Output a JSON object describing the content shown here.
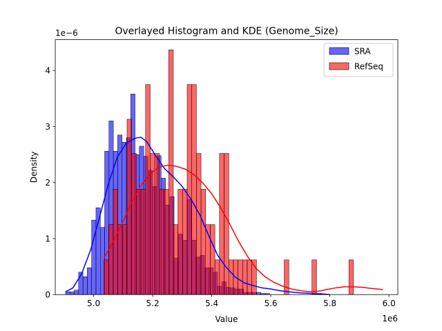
{
  "chart_data": {
    "type": "bar",
    "title": "Overlayed Histogram and KDE (Genome_Size)",
    "xlabel": "Value",
    "ylabel": "Density",
    "x_offset_text": "1e6",
    "y_offset_text": "1e−6",
    "xlim": [
      4.87,
      6.03
    ],
    "ylim": [
      0,
      4.55
    ],
    "xticks": [
      {
        "value": 5.0,
        "label": "5.0"
      },
      {
        "value": 5.2,
        "label": "5.2"
      },
      {
        "value": 5.4,
        "label": "5.4"
      },
      {
        "value": 5.6,
        "label": "5.6"
      },
      {
        "value": 5.8,
        "label": "5.8"
      },
      {
        "value": 6.0,
        "label": "6.0"
      }
    ],
    "yticks": [
      {
        "value": 0,
        "label": "0"
      },
      {
        "value": 1,
        "label": "1"
      },
      {
        "value": 2,
        "label": "2"
      },
      {
        "value": 3,
        "label": "3"
      },
      {
        "value": 4,
        "label": "4"
      }
    ],
    "grid": false,
    "legend_position": "top-right",
    "series": [
      {
        "name": "SRA",
        "kind": "histogram",
        "color": "#0000ff",
        "opacity": 0.6,
        "bin_start": 4.905,
        "bin_width": 0.0147,
        "values": [
          0.05,
          0.05,
          0.08,
          0.4,
          0.32,
          0.48,
          1.33,
          1.55,
          1.2,
          2.56,
          3.1,
          2.56,
          2.85,
          2.72,
          2.8,
          3.58,
          2.5,
          2.65,
          2.47,
          2.22,
          1.93,
          2.48,
          2.08,
          1.6,
          1.75,
          0.65,
          1.08,
          0.97,
          1.7,
          0.97,
          0.67,
          0.7,
          0.48,
          0.48,
          0.4,
          0.15,
          0.23,
          0.13,
          0.12,
          0.1,
          0.1,
          0.04,
          0.04,
          0.04,
          0.04,
          0.02,
          0.02,
          0.0,
          0.0,
          0.0,
          0.0,
          0.0,
          0.0,
          0.0,
          0.0,
          0.0,
          0.0,
          0.0,
          0.02
        ]
      },
      {
        "name": "RefSeq",
        "kind": "histogram",
        "color": "#ff0000",
        "opacity": 0.6,
        "bin_start": 5.035,
        "bin_width": 0.01565,
        "values": [
          0.62,
          1.25,
          1.88,
          1.25,
          1.25,
          3.13,
          2.52,
          1.88,
          1.88,
          3.75,
          2.52,
          2.52,
          1.88,
          1.88,
          4.37,
          1.25,
          1.88,
          1.88,
          3.75,
          3.75,
          2.52,
          1.88,
          1.25,
          1.25,
          0.62,
          2.52,
          2.52,
          0.62,
          0.62,
          0.62,
          0.62,
          0.62,
          0.62,
          0,
          0,
          0,
          0,
          0,
          0,
          0.62,
          0,
          0,
          0,
          0,
          0,
          0.62,
          0,
          0,
          0,
          0,
          0,
          0,
          0,
          0.62
        ]
      }
    ],
    "kde": [
      {
        "name": "SRA",
        "color": "#0000ff",
        "x": [
          4.905,
          4.93,
          4.96,
          4.99,
          5.02,
          5.05,
          5.08,
          5.11,
          5.14,
          5.16,
          5.18,
          5.21,
          5.24,
          5.27,
          5.3,
          5.33,
          5.36,
          5.39,
          5.42,
          5.45,
          5.48,
          5.51,
          5.54,
          5.57,
          5.6,
          5.63,
          5.66,
          5.7,
          5.74,
          5.78,
          5.8
        ],
        "y": [
          0.05,
          0.12,
          0.38,
          0.8,
          1.38,
          1.98,
          2.45,
          2.7,
          2.79,
          2.81,
          2.73,
          2.48,
          2.25,
          2.1,
          1.93,
          1.7,
          1.42,
          1.05,
          0.7,
          0.48,
          0.31,
          0.21,
          0.16,
          0.12,
          0.1,
          0.07,
          0.05,
          0.03,
          0.02,
          0.01,
          0.0
        ]
      },
      {
        "name": "RefSeq",
        "color": "#ff0000",
        "x": [
          5.035,
          5.07,
          5.1,
          5.13,
          5.16,
          5.19,
          5.22,
          5.25,
          5.28,
          5.31,
          5.34,
          5.37,
          5.4,
          5.43,
          5.46,
          5.49,
          5.52,
          5.55,
          5.58,
          5.61,
          5.64,
          5.67,
          5.7,
          5.73,
          5.76,
          5.79,
          5.82,
          5.85,
          5.88,
          5.91,
          5.94,
          5.98
        ],
        "y": [
          0.65,
          0.98,
          1.31,
          1.66,
          1.95,
          2.15,
          2.27,
          2.31,
          2.29,
          2.24,
          2.14,
          1.99,
          1.8,
          1.55,
          1.27,
          0.96,
          0.69,
          0.47,
          0.32,
          0.22,
          0.15,
          0.1,
          0.07,
          0.05,
          0.06,
          0.09,
          0.12,
          0.14,
          0.14,
          0.13,
          0.11,
          0.09
        ]
      }
    ]
  }
}
